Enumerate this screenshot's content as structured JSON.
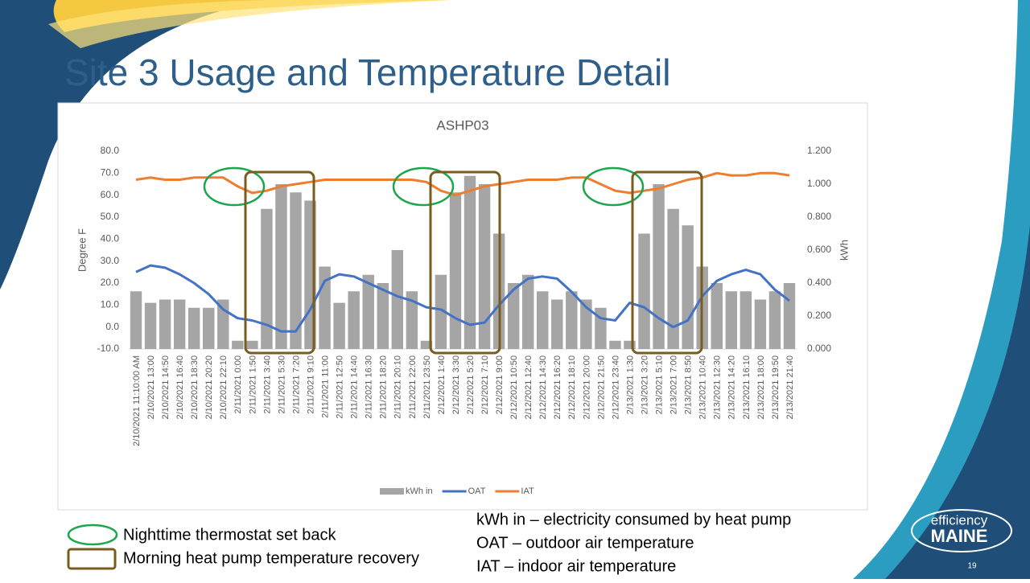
{
  "slide": {
    "title": "Site 3 Usage and Temperature Detail",
    "key": [
      "Nighttime thermostat set back",
      "Morning heat pump temperature recovery"
    ],
    "definitions": [
      "kWh in – electricity consumed by heat pump",
      "OAT – outdoor air temperature",
      "IAT – indoor air temperature"
    ],
    "logo": [
      "efficiency",
      "MAINE"
    ],
    "page_number": "19"
  },
  "chart_data": {
    "type": "combo",
    "title": "ASHP03",
    "y_label": "Degree F",
    "y2_label": "kWh",
    "categories": [
      "2/10/2021  11:10:00 AM",
      "2/10/2021 13:00",
      "2/10/2021 14:50",
      "2/10/2021 16:40",
      "2/10/2021 18:30",
      "2/10/2021 20:20",
      "2/10/2021 22:10",
      "2/11/2021 0:00",
      "2/11/2021 1:50",
      "2/11/2021 3:40",
      "2/11/2021 5:30",
      "2/11/2021 7:20",
      "2/11/2021 9:10",
      "2/11/2021 11:00",
      "2/11/2021 12:50",
      "2/11/2021 14:40",
      "2/11/2021 16:30",
      "2/11/2021 18:20",
      "2/11/2021 20:10",
      "2/11/2021 22:00",
      "2/11/2021 23:50",
      "2/12/2021 1:40",
      "2/12/2021 3:30",
      "2/12/2021 5:20",
      "2/12/2021 7:10",
      "2/12/2021 9:00",
      "2/12/2021 10:50",
      "2/12/2021 12:40",
      "2/12/2021 14:30",
      "2/12/2021 16:20",
      "2/12/2021 18:10",
      "2/12/2021 20:00",
      "2/12/2021 21:50",
      "2/12/2021 23:40",
      "2/13/2021 1:30",
      "2/13/2021 3:20",
      "2/13/2021 5:10",
      "2/13/2021 7:00",
      "2/13/2021 8:50",
      "2/13/2021 10:40",
      "2/13/2021 12:30",
      "2/13/2021 14:20",
      "2/13/2021 16:10",
      "2/13/2021 18:00",
      "2/13/2021 19:50",
      "2/13/2021 21:40"
    ],
    "series": [
      {
        "name": "kWh in",
        "type": "bar",
        "axis": "y2",
        "color": "#a5a5a5",
        "values": [
          0.35,
          0.28,
          0.3,
          0.3,
          0.25,
          0.25,
          0.3,
          0.05,
          0.05,
          0.85,
          1.0,
          0.95,
          0.9,
          0.5,
          0.28,
          0.35,
          0.45,
          0.4,
          0.6,
          0.35,
          0.05,
          0.45,
          0.95,
          1.05,
          1.0,
          0.7,
          0.4,
          0.45,
          0.35,
          0.3,
          0.35,
          0.3,
          0.25,
          0.05,
          0.05,
          0.7,
          1.0,
          0.85,
          0.75,
          0.5,
          0.4,
          0.35,
          0.35,
          0.3,
          0.35,
          0.4
        ]
      },
      {
        "name": "OAT",
        "type": "line",
        "color": "#4472c4",
        "values": [
          25,
          28,
          27,
          24,
          20,
          15,
          8,
          4,
          3,
          1,
          -2,
          -2,
          8,
          21,
          24,
          23,
          20,
          17,
          14,
          12,
          9,
          8,
          4,
          1,
          2,
          10,
          17,
          22,
          23,
          22,
          16,
          9,
          4,
          3,
          11,
          9,
          4,
          0,
          3,
          14,
          21,
          24,
          26,
          24,
          17,
          12
        ]
      },
      {
        "name": "IAT",
        "type": "line",
        "color": "#ed7d31",
        "values": [
          67,
          68,
          67,
          67,
          68,
          68,
          68,
          64,
          61,
          62,
          64,
          65,
          66,
          67,
          67,
          67,
          67,
          67,
          67,
          67,
          66,
          62,
          60,
          62,
          64,
          65,
          66,
          67,
          67,
          67,
          68,
          68,
          65,
          62,
          61,
          62,
          63,
          65,
          67,
          68,
          70,
          69,
          69,
          70,
          70,
          69
        ]
      }
    ],
    "ylim": [
      -10,
      80
    ],
    "yticks": [
      {
        "value": -10,
        "label": "-10.0"
      },
      {
        "value": 0,
        "label": "0.0"
      },
      {
        "value": 10,
        "label": "10.0"
      },
      {
        "value": 20,
        "label": "20.0"
      },
      {
        "value": 30,
        "label": "30.0"
      },
      {
        "value": 40,
        "label": "40.0"
      },
      {
        "value": 50,
        "label": "50.0"
      },
      {
        "value": 60,
        "label": "60.0"
      },
      {
        "value": 70,
        "label": "70.0"
      },
      {
        "value": 80,
        "label": "80.0"
      }
    ],
    "y2lim": [
      0,
      1.2
    ],
    "y2ticks": [
      {
        "value": 0,
        "label": "0.000"
      },
      {
        "value": 0.2,
        "label": "0.200"
      },
      {
        "value": 0.4,
        "label": "0.400"
      },
      {
        "value": 0.6,
        "label": "0.600"
      },
      {
        "value": 0.8,
        "label": "0.800"
      },
      {
        "value": 1.0,
        "label": "1.000"
      },
      {
        "value": 1.2,
        "label": "1.200"
      }
    ],
    "legend": "bottom"
  }
}
